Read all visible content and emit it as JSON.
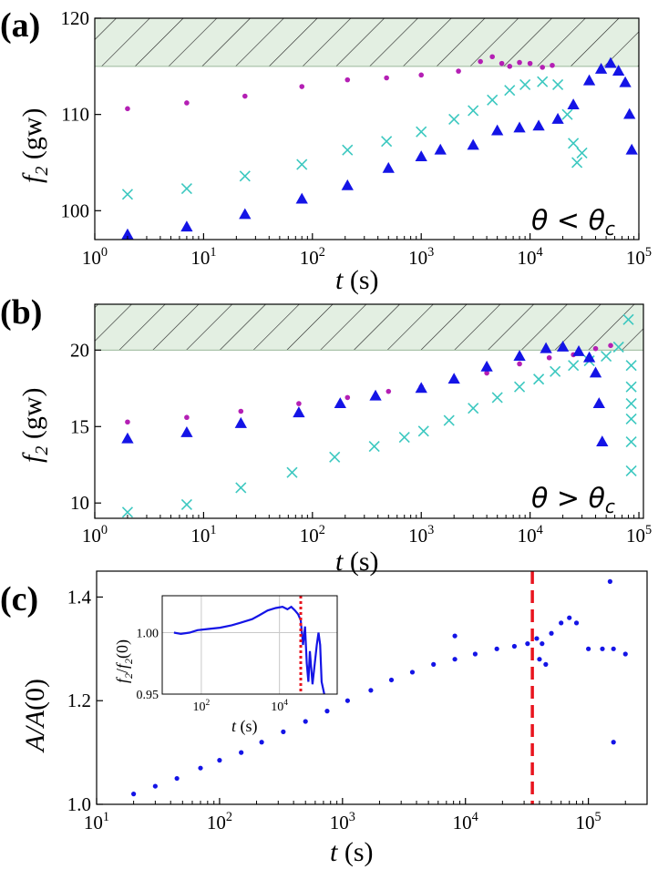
{
  "colors": {
    "magenta": "#b41fb4",
    "cyan": "#3cc8c0",
    "blue": "#1414e6",
    "hatch_fill": "#e3efe2",
    "red": "#e8141e"
  },
  "chart_data": [
    {
      "panel": "(a)",
      "type": "scatter",
      "x_scale": "log",
      "xlim": [
        1,
        100000
      ],
      "ylim": [
        97,
        120
      ],
      "x_ticks": [
        1,
        10,
        100,
        1000,
        10000,
        100000
      ],
      "x_tick_labels": [
        [
          "10",
          "0"
        ],
        [
          "10",
          "1"
        ],
        [
          "10",
          "2"
        ],
        [
          "10",
          "3"
        ],
        [
          "10",
          "4"
        ],
        [
          "10",
          "5"
        ]
      ],
      "y_ticks": [
        100,
        110,
        120
      ],
      "y_tick_labels": [
        "100",
        "110",
        "120"
      ],
      "xlabel": [
        "t",
        " (s)"
      ],
      "ylabel": [
        "f",
        "2",
        " (gw)"
      ],
      "annotation": [
        "θ < θ",
        "c"
      ],
      "forbidden_band": [
        115,
        120
      ],
      "series": [
        {
          "name": "magenta",
          "marker": "circle",
          "x": [
            2,
            7,
            24,
            80,
            210,
            480,
            1000,
            2200,
            3500,
            4500,
            5500,
            6500,
            8000,
            10000,
            13000,
            16000
          ],
          "y": [
            110.6,
            111.2,
            111.9,
            112.9,
            113.6,
            113.8,
            114.1,
            114.5,
            115.5,
            116,
            115.3,
            115,
            115.4,
            115.3,
            114.9,
            115.1
          ]
        },
        {
          "name": "cyan",
          "marker": "x",
          "x": [
            2,
            7,
            24,
            80,
            210,
            480,
            1000,
            2000,
            3000,
            4500,
            6500,
            9000,
            13000,
            18000,
            22000,
            25000,
            27000,
            30000
          ],
          "y": [
            101.7,
            102.3,
            103.6,
            104.8,
            106.3,
            107.2,
            108.2,
            109.5,
            110.4,
            111.5,
            112.5,
            113.1,
            113.4,
            113.1,
            110,
            107,
            105,
            106
          ]
        },
        {
          "name": "blue",
          "marker": "triangle",
          "x": [
            2,
            7,
            24,
            80,
            210,
            500,
            1000,
            1500,
            3000,
            5000,
            8000,
            12000,
            18000,
            25000,
            35000,
            45000,
            55000,
            65000,
            75000,
            82000,
            86000
          ],
          "y": [
            97.5,
            98.3,
            99.6,
            101.2,
            102.6,
            104.4,
            105.6,
            106.3,
            106.8,
            108.3,
            108.6,
            108.8,
            109.5,
            111,
            113.5,
            114.7,
            115.3,
            114.5,
            113.3,
            110,
            106.3
          ]
        }
      ]
    },
    {
      "panel": "(b)",
      "type": "scatter",
      "x_scale": "log",
      "xlim": [
        1,
        110000
      ],
      "ylim": [
        9,
        23
      ],
      "x_ticks": [
        1,
        10,
        100,
        1000,
        10000,
        100000
      ],
      "x_tick_labels": [
        [
          "10",
          "0"
        ],
        [
          "10",
          "1"
        ],
        [
          "10",
          "2"
        ],
        [
          "10",
          "3"
        ],
        [
          "10",
          "4"
        ],
        [
          "10",
          "5"
        ]
      ],
      "y_ticks": [
        10,
        15,
        20
      ],
      "y_tick_labels": [
        "10",
        "15",
        "20"
      ],
      "xlabel": [
        "t",
        " (s)"
      ],
      "ylabel": [
        "f",
        "2",
        " (gw)"
      ],
      "annotation": [
        "θ > θ",
        "c"
      ],
      "forbidden_band": [
        20,
        23
      ],
      "series": [
        {
          "name": "magenta",
          "marker": "circle",
          "x": [
            2,
            7,
            22,
            75,
            210,
            500,
            1000,
            2000,
            4000,
            8000,
            15000,
            25000,
            40000,
            55000
          ],
          "y": [
            15.3,
            15.6,
            16,
            16.5,
            16.9,
            17.3,
            17.6,
            18,
            18.5,
            19.1,
            19.5,
            19.7,
            20.1,
            20.3
          ]
        },
        {
          "name": "cyan",
          "marker": "x",
          "x": [
            2,
            7,
            22,
            65,
            160,
            370,
            700,
            1050,
            1800,
            3000,
            5000,
            8000,
            12000,
            17000,
            25000,
            35000,
            50000,
            65000,
            80000,
            85000,
            85000,
            85000,
            85000,
            85000,
            85000
          ],
          "y": [
            9.4,
            9.9,
            11,
            12,
            13,
            13.7,
            14.3,
            14.7,
            15.4,
            16.2,
            16.9,
            17.6,
            18.1,
            18.6,
            19,
            19.3,
            19.6,
            20.2,
            22,
            19,
            17.6,
            16.5,
            15.5,
            14,
            12.1
          ]
        },
        {
          "name": "blue",
          "marker": "triangle",
          "x": [
            2,
            7,
            22,
            75,
            180,
            380,
            1000,
            2000,
            4000,
            8000,
            14000,
            20000,
            28000,
            35000,
            40000,
            43000,
            46000
          ],
          "y": [
            14.2,
            14.6,
            15.2,
            15.9,
            16.5,
            17,
            17.5,
            18.1,
            18.9,
            19.6,
            20.1,
            20.2,
            19.9,
            19.5,
            18.5,
            16.5,
            14
          ]
        }
      ]
    },
    {
      "panel": "(c)",
      "type": "scatter",
      "x_scale": "log",
      "xlim": [
        10,
        300000
      ],
      "ylim": [
        1.0,
        1.45
      ],
      "x_ticks": [
        10,
        100,
        1000,
        10000,
        100000
      ],
      "x_tick_labels": [
        [
          "10",
          "1"
        ],
        [
          "10",
          "2"
        ],
        [
          "10",
          "3"
        ],
        [
          "10",
          "4"
        ],
        [
          "10",
          "5"
        ]
      ],
      "y_ticks": [
        1.0,
        1.2,
        1.4
      ],
      "y_tick_labels": [
        "1.0",
        "1.2",
        "1.4"
      ],
      "xlabel": [
        "t",
        " (s)"
      ],
      "ylabel": [
        "A/A",
        "(0)"
      ],
      "vline_x": 35000,
      "series": [
        {
          "name": "A/A(0)",
          "marker": "dot",
          "x": [
            20,
            30,
            45,
            70,
            100,
            150,
            220,
            330,
            500,
            750,
            1100,
            1700,
            2500,
            3700,
            5500,
            8200,
            12000,
            18000,
            25000,
            32000,
            38000,
            42000,
            50000,
            60000,
            70000,
            80000,
            100000,
            130000,
            160000,
            200000,
            8200,
            40000,
            45000,
            150000,
            160000
          ],
          "y": [
            1.02,
            1.035,
            1.05,
            1.07,
            1.085,
            1.1,
            1.12,
            1.14,
            1.16,
            1.18,
            1.2,
            1.22,
            1.24,
            1.255,
            1.27,
            1.28,
            1.29,
            1.3,
            1.305,
            1.31,
            1.32,
            1.31,
            1.33,
            1.35,
            1.36,
            1.35,
            1.3,
            1.3,
            1.3,
            1.29,
            1.325,
            1.28,
            1.27,
            1.43,
            1.12
          ]
        }
      ]
    }
  ],
  "inset": {
    "xlim": [
      10,
      300000
    ],
    "ylim": [
      0.95,
      1.03
    ],
    "x_ticks": [
      100,
      10000
    ],
    "x_tick_labels": [
      [
        "10",
        "2"
      ],
      [
        "10",
        "4"
      ]
    ],
    "y_ticks": [
      0.95,
      1.0
    ],
    "y_tick_labels": [
      "0.95",
      "1.00"
    ],
    "xlabel": [
      "t",
      " (s)"
    ],
    "ylabel": [
      "f",
      "2",
      "/",
      "f",
      "2",
      "(0)"
    ],
    "vline_x": 35000,
    "series": [
      {
        "name": "f2/f2(0)",
        "marker": "line",
        "x": [
          20,
          30,
          50,
          80,
          150,
          300,
          600,
          1000,
          2000,
          3000,
          5000,
          8000,
          12000,
          16000,
          20000,
          25000,
          30000,
          35000,
          40000,
          45000,
          50000,
          55000,
          60000,
          70000,
          80000,
          90000,
          100000,
          110000,
          120000,
          140000
        ],
        "y": [
          1.0,
          0.999,
          1.0,
          1.002,
          1.003,
          1.004,
          1.006,
          1.008,
          1.011,
          1.014,
          1.018,
          1.02,
          1.021,
          1.019,
          1.021,
          1.018,
          1.015,
          1.01,
          0.99,
          1.005,
          0.975,
          0.96,
          0.985,
          0.958,
          0.975,
          0.99,
          1.0,
          0.99,
          0.96,
          0.95
        ]
      }
    ]
  }
}
